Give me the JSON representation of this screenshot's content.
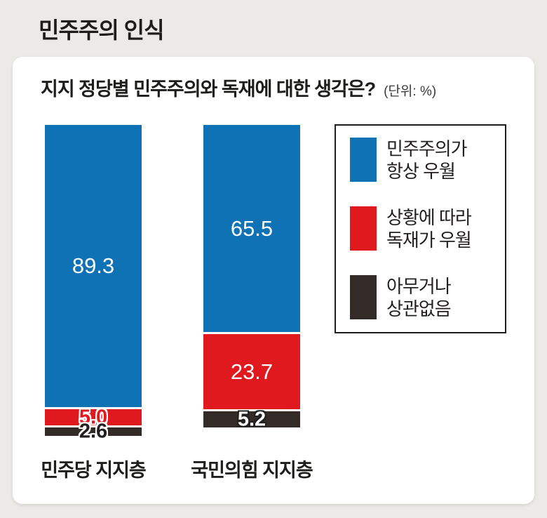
{
  "page_title": "민주주의 인식",
  "subtitle": "지지 정당별 민주주의와 독재에 대한 생각은?",
  "unit_label": "(단위: %)",
  "chart_data": {
    "type": "bar",
    "stacked": true,
    "orientation": "vertical",
    "title": "지지 정당별 민주주의와 독재에 대한 생각은?",
    "unit": "%",
    "grid": false,
    "legend_position": "right",
    "categories": [
      "민주당 지지층",
      "국민의힘 지지층"
    ],
    "series": [
      {
        "name": "민주주의가 항상 우월",
        "color": "#0E72B5",
        "values": [
          89.3,
          65.5
        ],
        "labels": [
          "89.3",
          "65.5"
        ]
      },
      {
        "name": "상황에 따라 독재가 우월",
        "color": "#E0191F",
        "values": [
          5.0,
          23.7
        ],
        "labels": [
          "5.0",
          "23.7"
        ]
      },
      {
        "name": "아무거나 상관없음",
        "color": "#322B28",
        "values": [
          2.6,
          5.2
        ],
        "labels": [
          "2.6",
          "5.2"
        ]
      }
    ]
  },
  "legend": {
    "items": [
      {
        "line1": "민주주의가",
        "line2": "항상 우월",
        "color": "#0E72B5"
      },
      {
        "line1": "상황에 따라",
        "line2": "독재가 우월",
        "color": "#E0191F"
      },
      {
        "line1": "아무거나",
        "line2": "상관없음",
        "color": "#322B28"
      }
    ]
  },
  "colors": {
    "background": "#ECEAE6",
    "card": "#FFFFFF",
    "text": "#231F20",
    "blue": "#0E72B5",
    "red": "#E0191F",
    "black": "#322B28"
  }
}
